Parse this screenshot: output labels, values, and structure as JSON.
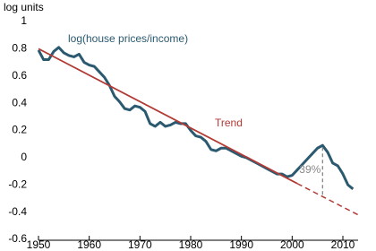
{
  "chart_data": {
    "type": "line",
    "y_axis_label": "log units",
    "xlim": [
      1950,
      2013
    ],
    "xticks": [
      1950,
      1960,
      1970,
      1980,
      1990,
      2000,
      2010
    ],
    "ylim": [
      -0.6,
      1.0
    ],
    "yticks": [
      -0.6,
      -0.4,
      -0.2,
      0,
      0.2,
      0.4,
      0.6,
      0.8,
      1
    ],
    "grid": false,
    "series": [
      {
        "name": "log(house prices/income)",
        "color": "#2b5a70",
        "x": [
          1950,
          1951,
          1952,
          1953,
          1954,
          1955,
          1956,
          1957,
          1958,
          1959,
          1960,
          1961,
          1962,
          1963,
          1964,
          1965,
          1966,
          1967,
          1968,
          1969,
          1970,
          1971,
          1972,
          1973,
          1974,
          1975,
          1976,
          1977,
          1978,
          1979,
          1980,
          1981,
          1982,
          1983,
          1984,
          1985,
          1986,
          1987,
          1988,
          1989,
          1990,
          1991,
          1992,
          1993,
          1994,
          1995,
          1996,
          1997,
          1998,
          1999,
          2000,
          2001,
          2002,
          2003,
          2004,
          2005,
          2006,
          2007,
          2008,
          2009,
          2010,
          2011,
          2012
        ],
        "values": [
          0.79,
          0.72,
          0.72,
          0.78,
          0.81,
          0.77,
          0.75,
          0.74,
          0.76,
          0.7,
          0.68,
          0.67,
          0.63,
          0.59,
          0.53,
          0.45,
          0.41,
          0.36,
          0.35,
          0.38,
          0.37,
          0.34,
          0.25,
          0.23,
          0.26,
          0.23,
          0.24,
          0.26,
          0.25,
          0.25,
          0.2,
          0.16,
          0.15,
          0.12,
          0.06,
          0.05,
          0.07,
          0.07,
          0.05,
          0.03,
          0.01,
          0.0,
          -0.02,
          -0.04,
          -0.06,
          -0.08,
          -0.1,
          -0.12,
          -0.12,
          -0.14,
          -0.13,
          -0.09,
          -0.05,
          -0.01,
          0.03,
          0.07,
          0.09,
          0.04,
          -0.04,
          -0.06,
          -0.12,
          -0.2,
          -0.23
        ]
      },
      {
        "name": "Trend",
        "color": "#b23a35",
        "dash_from_x": 2001,
        "x": [
          1950,
          2001,
          2013
        ],
        "values": [
          0.8,
          -0.19,
          -0.42
        ]
      }
    ],
    "annotation": {
      "text": "39%",
      "x": 2006
    }
  }
}
